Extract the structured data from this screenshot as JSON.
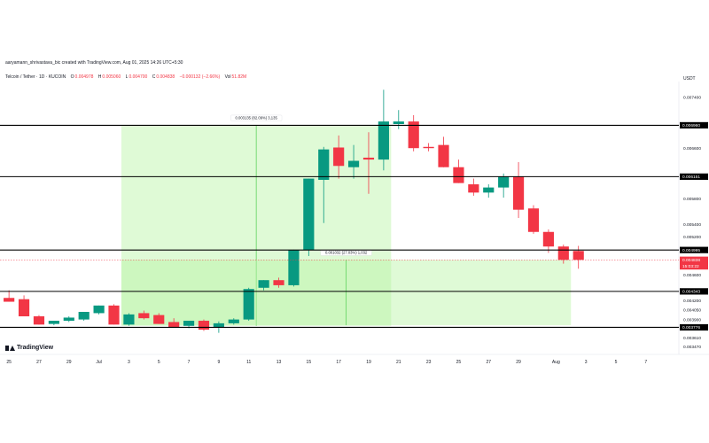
{
  "header": {
    "credit": "aaryamann_shrivastava_bic created with TradingView.com, Aug 01, 2025 14:26 UTC+5:30",
    "symbol": "Telcoin / Tether · 1D · KUCOIN",
    "ohlc": [
      {
        "label": "O",
        "value": "0.004978"
      },
      {
        "label": "H",
        "value": "0.005060"
      },
      {
        "label": "L",
        "value": "0.004700"
      },
      {
        "label": "C",
        "value": "0.004838"
      }
    ],
    "change": "−0.000132 (−2.66%)",
    "volume_label": "Vol",
    "volume_value": "51.82M"
  },
  "logo": {
    "text": "TradingView",
    "icon": "tradingview-logo-icon"
  },
  "colors": {
    "up": "#089981",
    "down": "#f23645",
    "range_fill": "#b7f5a5",
    "range_line": "#5fd25f",
    "level_line": "#000000"
  },
  "chart_data": {
    "type": "candlestick",
    "currency": "USDT",
    "ylim": [
      0.00335,
      0.00765
    ],
    "x_index_range": [
      -0.6,
      44.7
    ],
    "y_ticks": [
      {
        "value": 0.0074,
        "label": "0.007400"
      },
      {
        "value": 0.007,
        "label": "0.007000"
      },
      {
        "value": 0.0066,
        "label": "0.006600"
      },
      {
        "value": 0.0062,
        "label": "0.006200"
      },
      {
        "value": 0.0058,
        "label": "0.005800"
      },
      {
        "value": 0.0054,
        "label": "0.005400"
      },
      {
        "value": 0.0052,
        "label": "0.005200"
      },
      {
        "value": 0.0048,
        "label": "0.004800"
      },
      {
        "value": 0.0046,
        "label": "0.004600"
      },
      {
        "value": 0.0044,
        "label": "0.004400"
      },
      {
        "value": 0.0042,
        "label": "0.004200"
      },
      {
        "value": 0.00405,
        "label": "0.004050"
      },
      {
        "value": 0.0039,
        "label": "0.003900"
      },
      {
        "value": 0.00375,
        "label": "0.003750"
      },
      {
        "value": 0.00361,
        "label": "0.003610"
      },
      {
        "value": 0.00347,
        "label": "0.003470"
      }
    ],
    "x_ticks": [
      {
        "index": 0,
        "label": "25"
      },
      {
        "index": 2,
        "label": "27"
      },
      {
        "index": 4,
        "label": "29"
      },
      {
        "index": 6,
        "label": "Jul"
      },
      {
        "index": 8,
        "label": "3"
      },
      {
        "index": 10,
        "label": "5"
      },
      {
        "index": 12,
        "label": "7"
      },
      {
        "index": 14,
        "label": "9"
      },
      {
        "index": 16,
        "label": "11"
      },
      {
        "index": 18,
        "label": "13"
      },
      {
        "index": 20,
        "label": "15"
      },
      {
        "index": 22,
        "label": "17"
      },
      {
        "index": 24,
        "label": "19"
      },
      {
        "index": 26,
        "label": "21"
      },
      {
        "index": 28,
        "label": "23"
      },
      {
        "index": 30,
        "label": "25"
      },
      {
        "index": 32,
        "label": "27"
      },
      {
        "index": 34,
        "label": "29"
      },
      {
        "index": 36.5,
        "label": "Aug"
      },
      {
        "index": 38.5,
        "label": "3"
      },
      {
        "index": 40.5,
        "label": "5"
      },
      {
        "index": 42.5,
        "label": "7"
      }
    ],
    "candles": [
      {
        "o": 0.00424,
        "h": 0.00436,
        "l": 0.00418,
        "c": 0.00418
      },
      {
        "o": 0.00422,
        "h": 0.00428,
        "l": 0.00395,
        "c": 0.00395
      },
      {
        "o": 0.00395,
        "h": 0.00397,
        "l": 0.00382,
        "c": 0.00382
      },
      {
        "o": 0.00383,
        "h": 0.00388,
        "l": 0.00381,
        "c": 0.00388
      },
      {
        "o": 0.00388,
        "h": 0.00395,
        "l": 0.00386,
        "c": 0.00393
      },
      {
        "o": 0.0039,
        "h": 0.00402,
        "l": 0.00388,
        "c": 0.00402
      },
      {
        "o": 0.004,
        "h": 0.00412,
        "l": 0.00398,
        "c": 0.00412
      },
      {
        "o": 0.00412,
        "h": 0.00414,
        "l": 0.00382,
        "c": 0.00382
      },
      {
        "o": 0.00382,
        "h": 0.004,
        "l": 0.0038,
        "c": 0.00398
      },
      {
        "o": 0.004,
        "h": 0.00404,
        "l": 0.0039,
        "c": 0.00392
      },
      {
        "o": 0.00397,
        "h": 0.004,
        "l": 0.00383,
        "c": 0.00383
      },
      {
        "o": 0.00386,
        "h": 0.00392,
        "l": 0.00378,
        "c": 0.00378
      },
      {
        "o": 0.0038,
        "h": 0.00388,
        "l": 0.00376,
        "c": 0.00388
      },
      {
        "o": 0.00388,
        "h": 0.0039,
        "l": 0.00372,
        "c": 0.00374
      },
      {
        "o": 0.00377,
        "h": 0.00387,
        "l": 0.00369,
        "c": 0.00384
      },
      {
        "o": 0.00384,
        "h": 0.00392,
        "l": 0.00382,
        "c": 0.0039
      },
      {
        "o": 0.0039,
        "h": 0.0044,
        "l": 0.00388,
        "c": 0.00438
      },
      {
        "o": 0.0044,
        "h": 0.00452,
        "l": 0.00436,
        "c": 0.00452
      },
      {
        "o": 0.00452,
        "h": 0.00456,
        "l": 0.0044,
        "c": 0.00444
      },
      {
        "o": 0.00444,
        "h": 0.005,
        "l": 0.00442,
        "c": 0.00499
      },
      {
        "o": 0.00499,
        "h": 0.00612,
        "l": 0.0049,
        "c": 0.00612
      },
      {
        "o": 0.0061,
        "h": 0.00662,
        "l": 0.00542,
        "c": 0.00658
      },
      {
        "o": 0.00661,
        "h": 0.0068,
        "l": 0.00612,
        "c": 0.00632
      },
      {
        "o": 0.0063,
        "h": 0.00665,
        "l": 0.00612,
        "c": 0.0064
      },
      {
        "o": 0.00645,
        "h": 0.00685,
        "l": 0.00588,
        "c": 0.00642
      },
      {
        "o": 0.00642,
        "h": 0.00752,
        "l": 0.00625,
        "c": 0.00702
      },
      {
        "o": 0.00698,
        "h": 0.0072,
        "l": 0.0069,
        "c": 0.00702
      },
      {
        "o": 0.00702,
        "h": 0.00712,
        "l": 0.00655,
        "c": 0.0066
      },
      {
        "o": 0.00662,
        "h": 0.00668,
        "l": 0.00655,
        "c": 0.0066
      },
      {
        "o": 0.00665,
        "h": 0.00678,
        "l": 0.0063,
        "c": 0.0063
      },
      {
        "o": 0.0063,
        "h": 0.00642,
        "l": 0.00605,
        "c": 0.00605
      },
      {
        "o": 0.00603,
        "h": 0.00612,
        "l": 0.00585,
        "c": 0.0059
      },
      {
        "o": 0.0059,
        "h": 0.00603,
        "l": 0.00582,
        "c": 0.00598
      },
      {
        "o": 0.00598,
        "h": 0.0062,
        "l": 0.00582,
        "c": 0.00615
      },
      {
        "o": 0.00615,
        "h": 0.00638,
        "l": 0.0055,
        "c": 0.00563
      },
      {
        "o": 0.00565,
        "h": 0.0057,
        "l": 0.00525,
        "c": 0.00528
      },
      {
        "o": 0.00528,
        "h": 0.00532,
        "l": 0.00495,
        "c": 0.00505
      },
      {
        "o": 0.00505,
        "h": 0.00508,
        "l": 0.00478,
        "c": 0.00484
      },
      {
        "o": 0.00498,
        "h": 0.00506,
        "l": 0.0047,
        "c": 0.00484
      }
    ],
    "horizontal_levels": [
      {
        "value": 0.00696,
        "label": "0.006960"
      },
      {
        "value": 0.006151,
        "label": "0.006151"
      },
      {
        "value": 0.004995,
        "label": "0.004995"
      },
      {
        "value": 0.004343,
        "label": "0.004343"
      },
      {
        "value": 0.003776,
        "label": "0.003776"
      }
    ],
    "price_ranges": [
      {
        "from_index": 7.5,
        "to_index": 25.5,
        "low": 0.0038,
        "high": 0.00696,
        "label": "0.003135 (82.09%) 3,135"
      },
      {
        "from_index": 7.5,
        "to_index": 37.5,
        "low": 0.00381,
        "high": 0.004838,
        "label": "0.001032 (27.03%) 1,032"
      }
    ],
    "last_price": {
      "value": 0.004838,
      "label": "0.004838",
      "countdown": "15:03:22"
    }
  }
}
